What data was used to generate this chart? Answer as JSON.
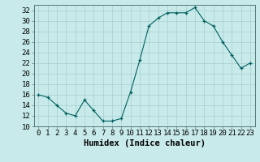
{
  "x": [
    0,
    1,
    2,
    3,
    4,
    5,
    6,
    7,
    8,
    9,
    10,
    11,
    12,
    13,
    14,
    15,
    16,
    17,
    18,
    19,
    20,
    21,
    22,
    23
  ],
  "y": [
    16.0,
    15.5,
    14.0,
    12.5,
    12.0,
    15.0,
    13.0,
    11.0,
    11.0,
    11.5,
    16.5,
    22.5,
    29.0,
    30.5,
    31.5,
    31.5,
    31.5,
    32.5,
    30.0,
    29.0,
    26.0,
    23.5,
    21.0,
    22.0
  ],
  "line_color": "#006060",
  "marker_color": "#006060",
  "bg_color": "#c8eaea",
  "grid_color": "#a8cece",
  "xlabel": "Humidex (Indice chaleur)",
  "ylim": [
    10,
    33
  ],
  "xlim": [
    -0.5,
    23.5
  ],
  "yticks": [
    10,
    12,
    14,
    16,
    18,
    20,
    22,
    24,
    26,
    28,
    30,
    32
  ],
  "xticks": [
    0,
    1,
    2,
    3,
    4,
    5,
    6,
    7,
    8,
    9,
    10,
    11,
    12,
    13,
    14,
    15,
    16,
    17,
    18,
    19,
    20,
    21,
    22,
    23
  ],
  "tick_fontsize": 6.5,
  "label_fontsize": 7.5
}
